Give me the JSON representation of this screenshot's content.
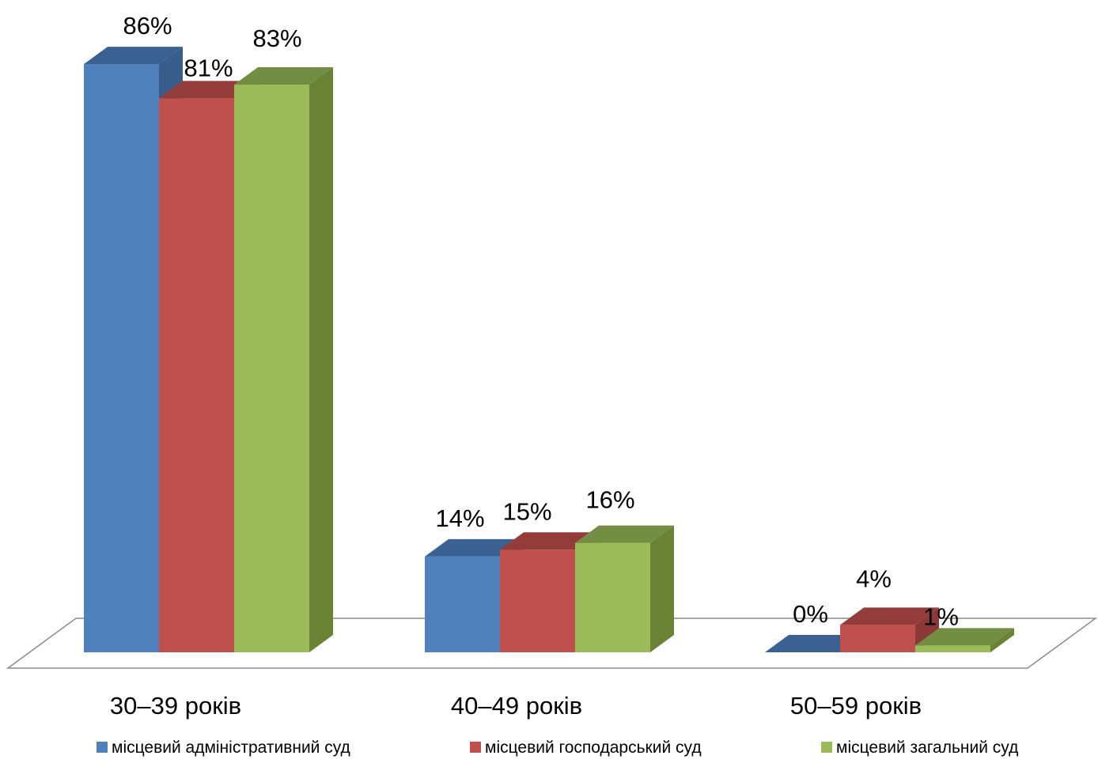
{
  "chart_data": {
    "type": "bar",
    "style": "3d-clustered-column",
    "categories": [
      "30–39 років",
      "40–49 років",
      "50–59 років"
    ],
    "series": [
      {
        "name": "місцевий адміністративний суд",
        "values": [
          86,
          14,
          0
        ],
        "labels": [
          "86%",
          "14%",
          "0%"
        ],
        "color": "#4F81BD",
        "top_color": "#3A6191",
        "side_color": "#385D8A"
      },
      {
        "name": "місцевий господарський суд",
        "values": [
          81,
          15,
          4
        ],
        "labels": [
          "81%",
          "15%",
          "4%"
        ],
        "color": "#C0504D",
        "top_color": "#943C3A",
        "side_color": "#8C3836"
      },
      {
        "name": "місцевий загальний суд",
        "values": [
          83,
          16,
          1
        ],
        "labels": [
          "83%",
          "16%",
          "1%"
        ],
        "color": "#9BBB59",
        "top_color": "#738E43",
        "side_color": "#6A8234"
      }
    ],
    "unit": "%",
    "ylim": [
      0,
      100
    ],
    "grid": false,
    "legend_position": "bottom",
    "floor_color": "#FFFFFF",
    "floor_edge_color": "#8C8C8C"
  }
}
